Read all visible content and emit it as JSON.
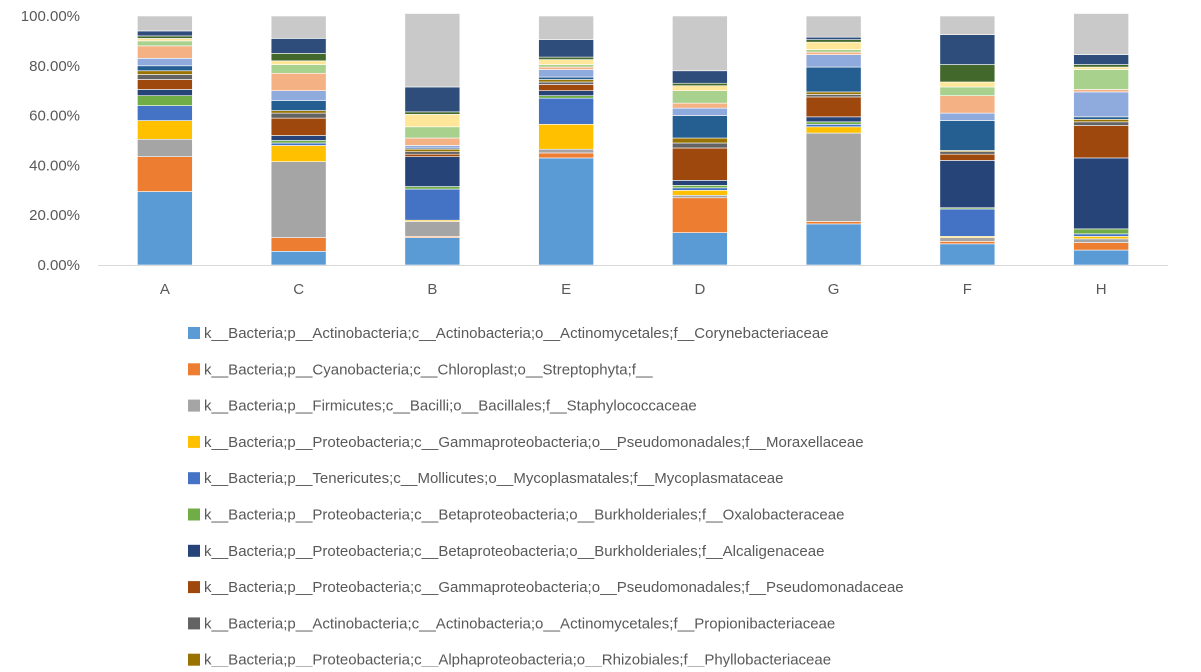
{
  "chart_data": {
    "type": "bar",
    "stacked": true,
    "percent_stacked": true,
    "categories": [
      "A",
      "C",
      "B",
      "E",
      "D",
      "G",
      "F",
      "H"
    ],
    "y_ticks": [
      "0.00%",
      "20.00%",
      "40.00%",
      "60.00%",
      "80.00%",
      "100.00%"
    ],
    "ylim": [
      0,
      100
    ],
    "grid": false,
    "legend_placement": "bottom",
    "series": [
      {
        "name": "k__Bacteria;p__Actinobacteria;c__Actinobacteria;o__Actinomycetales;f__Corynebacteriaceae",
        "color": "#5b9bd5",
        "values": [
          29.5,
          5.5,
          11,
          43,
          13,
          16.5,
          8.5,
          6
        ]
      },
      {
        "name": "k__Bacteria;p__Cyanobacteria;c__Chloroplast;o__Streptophyta;f__",
        "color": "#ed7d31",
        "values": [
          14,
          5.5,
          0.5,
          2,
          14,
          1,
          1,
          3
        ]
      },
      {
        "name": "k__Bacteria;p__Firmicutes;c__Bacilli;o__Bacillales;f__Staphylococcaceae",
        "color": "#a5a5a5",
        "values": [
          7,
          30.5,
          6,
          1.5,
          1,
          35.5,
          1.5,
          1.5
        ]
      },
      {
        "name": "k__Bacteria;p__Proteobacteria;c__Gammaproteobacteria;o__Pseudomonadales;f__Moraxellaceae",
        "color": "#ffc000",
        "values": [
          7.5,
          6.5,
          0.5,
          10,
          2,
          2.5,
          0.5,
          1
        ]
      },
      {
        "name": "k__Bacteria;p__Tenericutes;c__Mollicutes;o__Mycoplasmatales;f__Mycoplasmataceae",
        "color": "#4472c4",
        "values": [
          6,
          1,
          12.5,
          10.5,
          1,
          1,
          11,
          1
        ]
      },
      {
        "name": "k__Bacteria;p__Proteobacteria;c__Betaproteobacteria;o__Burkholderiales;f__Oxalobacteraceae",
        "color": "#70ad47",
        "values": [
          4,
          1,
          1,
          1,
          1,
          1,
          0.5,
          2
        ]
      },
      {
        "name": "k__Bacteria;p__Proteobacteria;c__Betaproteobacteria;o__Burkholderiales;f__Alcaligenaceae",
        "color": "#264478",
        "values": [
          2.5,
          2,
          12,
          2,
          2,
          2,
          19,
          28.5
        ]
      },
      {
        "name": "k__Bacteria;p__Proteobacteria;c__Gammaproteobacteria;o__Pseudomonadales;f__Pseudomonadaceae",
        "color": "#9e480e",
        "values": [
          4,
          7,
          1,
          2.5,
          13,
          8,
          2.5,
          13
        ]
      },
      {
        "name": "k__Bacteria;p__Actinobacteria;c__Actinobacteria;o__Actinomycetales;f__Propionibacteriaceae",
        "color": "#636363",
        "values": [
          2,
          2,
          1,
          1,
          2,
          1,
          1,
          1.5
        ]
      },
      {
        "name": "k__Bacteria;p__Proteobacteria;c__Alphaproteobacteria;o__Rhizobiales;f__Phyllobacteriaceae",
        "color": "#997300",
        "values": [
          1.5,
          1,
          1,
          1,
          2,
          1,
          0.5,
          1
        ]
      },
      {
        "color": "#255e91",
        "values": [
          2,
          4,
          0.5,
          1,
          9,
          10,
          12,
          1
        ]
      },
      {
        "color": "#8faadc",
        "values": [
          3,
          4,
          1,
          3,
          3,
          5,
          3,
          10
        ]
      },
      {
        "color": "#f4b183",
        "values": [
          5,
          7,
          3,
          1,
          2,
          1,
          7,
          1
        ]
      },
      {
        "color": "#a9d18e",
        "values": [
          2,
          3.5,
          4.5,
          1,
          5,
          1,
          3.5,
          8
        ]
      },
      {
        "color": "#ffe699",
        "values": [
          1,
          1.5,
          5,
          2,
          2,
          3,
          2,
          1
        ]
      },
      {
        "color": "#43682b",
        "values": [
          1,
          3,
          1,
          1,
          1,
          1,
          7,
          1
        ]
      },
      {
        "color": "#2e4d7b",
        "values": [
          2,
          6,
          10,
          7,
          5,
          1,
          12,
          4
        ]
      },
      {
        "color": "#c9c9c9",
        "values": [
          6,
          9,
          29.5,
          9.5,
          22,
          8.5,
          7.5,
          16.5
        ]
      }
    ]
  }
}
